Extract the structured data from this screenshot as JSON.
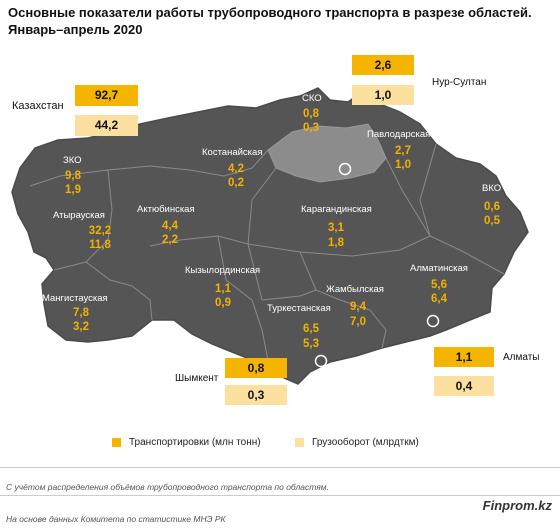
{
  "title": {
    "line1": "Основные показатели работы трубопроводного транспорта в разрезе областей.",
    "line2": "Январь–апрель 2020"
  },
  "colors": {
    "map_fill": "#555555",
    "map_border": "#8a8a8a",
    "highlight_fill": "#8c8c8c",
    "transport": "#f5b400",
    "freight": "#fbe0a0",
    "value_text": "#f2b200"
  },
  "kazakhstan": {
    "label": "Казахстан",
    "transport": "92,7",
    "freight": "44,2"
  },
  "cities": {
    "nur_sultan": {
      "label": "Нур-Султан",
      "transport": "2,6",
      "freight": "1,0"
    },
    "almaty": {
      "label": "Алматы",
      "transport": "1,1",
      "freight": "0,4"
    },
    "shymkent": {
      "label": "Шымкент",
      "transport": "0,8",
      "freight": "0,3"
    }
  },
  "regions": [
    {
      "name": "СКО",
      "transport": "0,8",
      "freight": "0,3"
    },
    {
      "name": "Павлодарская",
      "transport": "2,7",
      "freight": "1,0"
    },
    {
      "name": "Костанайская",
      "transport": "4,2",
      "freight": "0,2"
    },
    {
      "name": "ЗКО",
      "transport": "9,8",
      "freight": "1,9"
    },
    {
      "name": "ВКО",
      "transport": "0,6",
      "freight": "0,5"
    },
    {
      "name": "Актюбинская",
      "transport": "4,4",
      "freight": "2,2"
    },
    {
      "name": "Карагандинская",
      "transport": "3,1",
      "freight": "1,8"
    },
    {
      "name": "Атырауская",
      "transport": "32,2",
      "freight": "11,8"
    },
    {
      "name": "Кызылординская",
      "transport": "1,1",
      "freight": "0,9"
    },
    {
      "name": "Алматинская",
      "transport": "5,6",
      "freight": "6,4"
    },
    {
      "name": "Мангистауская",
      "transport": "7,8",
      "freight": "3,2"
    },
    {
      "name": "Жамбылская",
      "transport": "9,4",
      "freight": "7,0"
    },
    {
      "name": "Туркестанская",
      "transport": "6,5",
      "freight": "5,3"
    }
  ],
  "legend": {
    "transport": "Транспортировки (млн тонн)",
    "freight": "Грузооборот (млрдткм)"
  },
  "footnote": "С учётом распределения объёмов трубопроводного транспорта по областям.",
  "brand": "Finprom.kz",
  "source": "На основе данных  Комитета по статистике МНЭ РК"
}
